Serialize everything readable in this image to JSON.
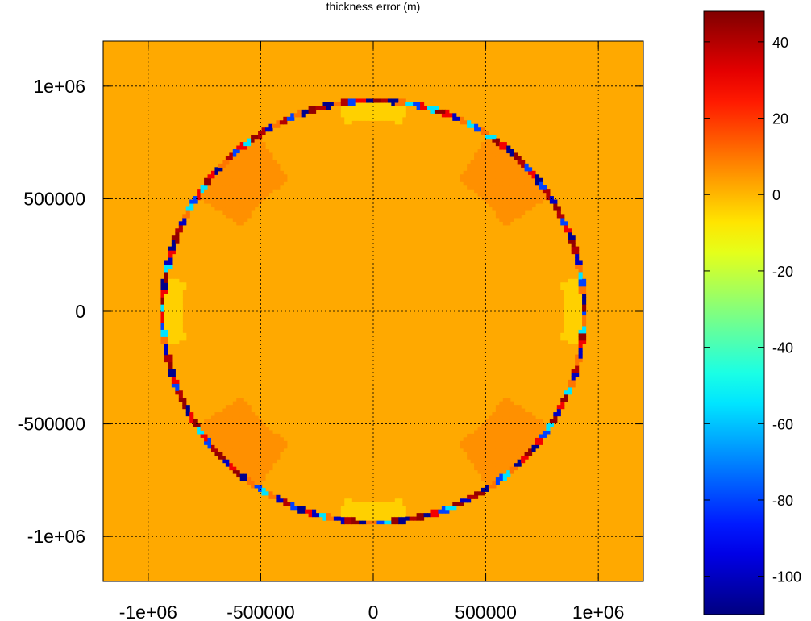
{
  "chart_data": {
    "type": "heatmap",
    "title": "thickness error (m)",
    "xlabel": "",
    "ylabel": "",
    "xlim": [
      -1200000,
      1200000
    ],
    "ylim": [
      -1200000,
      1200000
    ],
    "x_ticks": [
      {
        "value": -1000000,
        "label": "-1e+06"
      },
      {
        "value": -500000,
        "label": "-500000"
      },
      {
        "value": 0,
        "label": "0"
      },
      {
        "value": 500000,
        "label": "500000"
      },
      {
        "value": 1000000,
        "label": "1e+06"
      }
    ],
    "y_ticks": [
      {
        "value": 1000000,
        "label": "1e+06"
      },
      {
        "value": 500000,
        "label": "500000"
      },
      {
        "value": 0,
        "label": "0"
      },
      {
        "value": -500000,
        "label": "-500000"
      },
      {
        "value": -1000000,
        "label": "-1e+06"
      }
    ],
    "grid": true,
    "colormap": "jet",
    "background_value": 2,
    "colorbar": {
      "range": [
        -110,
        48
      ],
      "ticks": [
        {
          "value": 40,
          "label": "40"
        },
        {
          "value": 20,
          "label": "20"
        },
        {
          "value": 0,
          "label": "0"
        },
        {
          "value": -20,
          "label": "-20"
        },
        {
          "value": -40,
          "label": "-40"
        },
        {
          "value": -60,
          "label": "-60"
        },
        {
          "value": -80,
          "label": "-80"
        },
        {
          "value": -100,
          "label": "-100"
        }
      ]
    },
    "features": {
      "margin_ring": {
        "center": [
          0,
          0
        ],
        "radius": 935000,
        "min_value": -108,
        "max_value": 45
      },
      "diagonal_bands": {
        "sector_angles_deg": [
          45,
          135,
          225,
          315
        ],
        "value": 6
      },
      "axis_lobes": [
        {
          "angle_deg": 90,
          "value": -4
        },
        {
          "angle_deg": 270,
          "value": -4
        },
        {
          "angle_deg": 0,
          "value": -4
        },
        {
          "angle_deg": 180,
          "value": -4
        }
      ]
    }
  }
}
